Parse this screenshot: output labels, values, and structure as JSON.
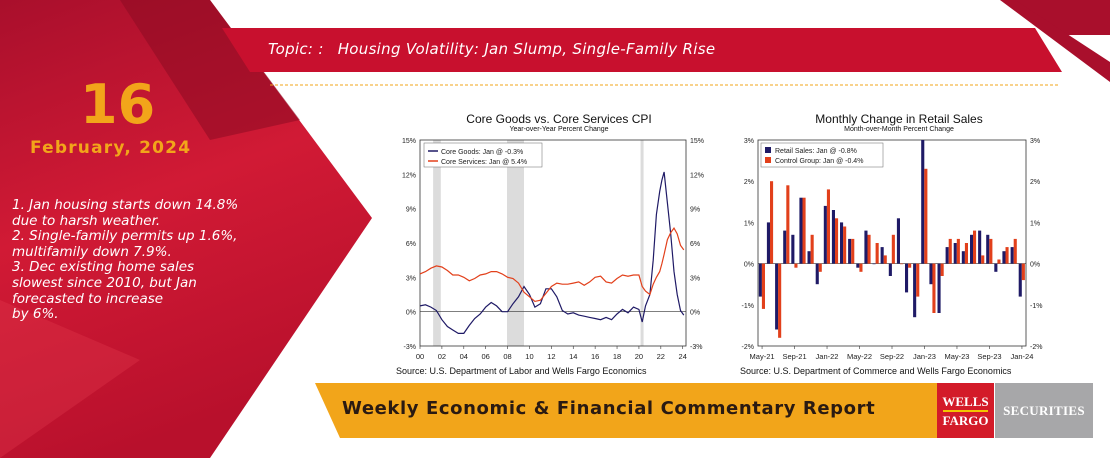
{
  "topic": {
    "label": "Topic: :",
    "title": "Housing Volatility: Jan Slump, Single-Family Rise"
  },
  "date": {
    "day": "16",
    "month_year": "February, 2024"
  },
  "bullets": [
    "1. Jan housing starts down 14.8%\ndue to harsh weather.",
    "2. Single-family permits up 1.6%,\nmultifamily down 7.9%.",
    "3. Dec existing home sales\nslowest since 2010, but Jan\nforecasted to increase\nby 6%."
  ],
  "banner": {
    "title": "Weekly Economic & Financial Commentary Report"
  },
  "logos": {
    "wells_fargo_line1": "WELLS",
    "wells_fargo_line2": "FARGO",
    "securities": "SECURITIES"
  },
  "colors": {
    "crimson": "#c8102e",
    "gold": "#f2a51a",
    "navy": "#1f1a66",
    "red_series": "#e2401b",
    "recession_gray": "#dcdcdc"
  },
  "chart_data": [
    {
      "type": "line",
      "title": "Core Goods vs. Core Services CPI",
      "subtitle": "Year-over-Year Percent Change",
      "x_tick_labels": [
        "00",
        "02",
        "04",
        "06",
        "08",
        "10",
        "12",
        "14",
        "16",
        "18",
        "20",
        "22",
        "24"
      ],
      "xlim": [
        2000,
        2024.3
      ],
      "ylim": [
        -3,
        15
      ],
      "y_ticks": [
        -3,
        0,
        3,
        6,
        9,
        12,
        15
      ],
      "y_tick_labels": [
        "-3%",
        "0%",
        "3%",
        "6%",
        "9%",
        "12%",
        "15%"
      ],
      "recessions": [
        [
          2001.2,
          2001.9
        ],
        [
          2007.95,
          2009.5
        ],
        [
          2020.15,
          2020.35
        ]
      ],
      "legend": "top-left",
      "source": "Source: U.S. Department of Labor and Wells Fargo Economics",
      "series": [
        {
          "name": "Core Goods: Jan @ -0.3%",
          "color": "#1f1a66",
          "x": [
            2000,
            2000.5,
            2001,
            2001.5,
            2002,
            2002.5,
            2003,
            2003.5,
            2004,
            2004.5,
            2005,
            2005.5,
            2006,
            2006.5,
            2007,
            2007.5,
            2008,
            2008.5,
            2009,
            2009.5,
            2010,
            2010.5,
            2011,
            2011.5,
            2012,
            2012.5,
            2013,
            2013.5,
            2014,
            2014.5,
            2015,
            2015.5,
            2016,
            2016.5,
            2017,
            2017.5,
            2018,
            2018.5,
            2019,
            2019.5,
            2020,
            2020.3,
            2020.6,
            2021,
            2021.3,
            2021.6,
            2021.9,
            2022.1,
            2022.3,
            2022.6,
            2022.9,
            2023.2,
            2023.5,
            2023.8,
            2024.1
          ],
          "y": [
            0.5,
            0.6,
            0.4,
            0.1,
            -0.7,
            -1.3,
            -1.6,
            -1.9,
            -1.9,
            -1.2,
            -0.6,
            -0.2,
            0.4,
            0.8,
            0.5,
            0.0,
            0.0,
            0.7,
            1.3,
            2.2,
            1.5,
            0.4,
            0.7,
            2.0,
            2.0,
            1.3,
            0.1,
            -0.2,
            -0.1,
            -0.3,
            -0.4,
            -0.5,
            -0.6,
            -0.7,
            -0.5,
            -0.7,
            -0.2,
            0.2,
            -0.1,
            0.4,
            0.2,
            -0.9,
            0.5,
            1.5,
            4.5,
            8.5,
            10.5,
            11.5,
            12.2,
            9.5,
            6.8,
            3.5,
            1.5,
            0.1,
            -0.3
          ]
        },
        {
          "name": "Core Services: Jan @ 5.4%",
          "color": "#e2401b",
          "x": [
            2000,
            2000.5,
            2001,
            2001.5,
            2002,
            2002.5,
            2003,
            2003.5,
            2004,
            2004.5,
            2005,
            2005.5,
            2006,
            2006.5,
            2007,
            2007.5,
            2008,
            2008.5,
            2009,
            2009.5,
            2010,
            2010.5,
            2011,
            2011.5,
            2012,
            2012.5,
            2013,
            2013.5,
            2014,
            2014.5,
            2015,
            2015.5,
            2016,
            2016.5,
            2017,
            2017.5,
            2018,
            2018.5,
            2019,
            2019.5,
            2020,
            2020.3,
            2020.6,
            2021,
            2021.3,
            2021.6,
            2021.9,
            2022.1,
            2022.3,
            2022.6,
            2022.9,
            2023.2,
            2023.5,
            2023.8,
            2024.1
          ],
          "y": [
            3.3,
            3.5,
            3.8,
            4.0,
            3.9,
            3.6,
            3.2,
            3.2,
            3.0,
            2.7,
            2.9,
            3.2,
            3.3,
            3.5,
            3.5,
            3.3,
            3.0,
            2.9,
            2.5,
            1.7,
            1.3,
            0.9,
            1.0,
            1.6,
            2.2,
            2.5,
            2.4,
            2.4,
            2.5,
            2.6,
            2.3,
            2.6,
            3.0,
            3.1,
            2.6,
            2.5,
            2.9,
            3.2,
            3.1,
            3.2,
            3.2,
            2.2,
            1.8,
            1.5,
            2.4,
            3.0,
            3.5,
            4.2,
            5.0,
            6.3,
            6.9,
            7.3,
            6.8,
            5.8,
            5.4
          ]
        }
      ]
    },
    {
      "type": "bar",
      "title": "Monthly Change in Retail Sales",
      "subtitle": "Month-over-Month Percent Change",
      "x_tick_labels": [
        "May-21",
        "Sep-21",
        "Jan-22",
        "May-22",
        "Sep-22",
        "Jan-23",
        "May-23",
        "Sep-23",
        "Jan-24"
      ],
      "categories": [
        "May-21",
        "Jun-21",
        "Jul-21",
        "Aug-21",
        "Sep-21",
        "Oct-21",
        "Nov-21",
        "Dec-21",
        "Jan-22",
        "Feb-22",
        "Mar-22",
        "Apr-22",
        "May-22",
        "Jun-22",
        "Jul-22",
        "Aug-22",
        "Sep-22",
        "Oct-22",
        "Nov-22",
        "Dec-22",
        "Jan-23",
        "Feb-23",
        "Mar-23",
        "Apr-23",
        "May-23",
        "Jun-23",
        "Jul-23",
        "Aug-23",
        "Sep-23",
        "Oct-23",
        "Nov-23",
        "Dec-23",
        "Jan-24"
      ],
      "ylim": [
        -2,
        3
      ],
      "y_ticks": [
        -2,
        -1,
        0,
        1,
        2,
        3
      ],
      "y_tick_labels": [
        "-2%",
        "-1%",
        "0%",
        "1%",
        "2%",
        "3%"
      ],
      "legend": "top-left",
      "source": "Source: U.S. Department of Commerce and Wells Fargo Economics",
      "series": [
        {
          "name": "Retail Sales: Jan @ -0.8%",
          "color": "#1f1a66",
          "values": [
            -0.8,
            1.0,
            -1.6,
            0.8,
            0.7,
            1.6,
            0.3,
            -0.5,
            1.4,
            1.3,
            1.0,
            0.6,
            -0.1,
            0.8,
            0.0,
            0.4,
            -0.3,
            1.1,
            -0.7,
            -1.3,
            3.0,
            -0.5,
            -1.2,
            0.4,
            0.5,
            0.3,
            0.7,
            0.8,
            0.7,
            -0.2,
            0.3,
            0.4,
            -0.8
          ]
        },
        {
          "name": "Control Group: Jan @ -0.4%",
          "color": "#e2401b",
          "values": [
            -1.1,
            2.0,
            -1.8,
            1.9,
            -0.1,
            1.6,
            0.7,
            -0.2,
            1.8,
            1.1,
            0.9,
            0.6,
            -0.2,
            0.7,
            0.5,
            0.2,
            0.7,
            0.0,
            -0.1,
            -0.8,
            2.3,
            -1.2,
            -0.3,
            0.6,
            0.6,
            0.5,
            0.8,
            0.2,
            0.6,
            0.1,
            0.4,
            0.6,
            -0.4
          ]
        }
      ]
    }
  ]
}
